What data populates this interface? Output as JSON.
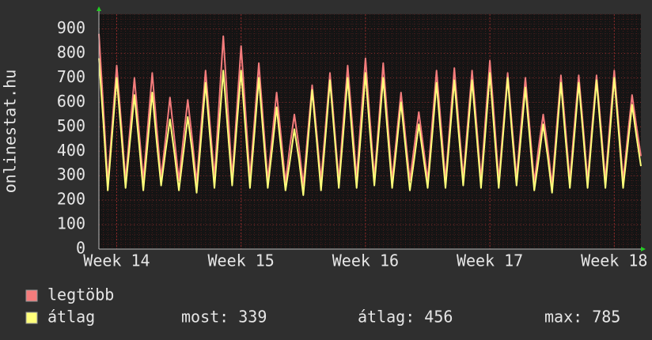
{
  "chart_data": {
    "type": "line",
    "y_label": "onlinestat.hu",
    "xlim": [
      -1,
      29.5
    ],
    "xticks": [
      {
        "value": 0,
        "label": "Week 14"
      },
      {
        "value": 7,
        "label": "Week 15"
      },
      {
        "value": 14,
        "label": "Week 16"
      },
      {
        "value": 21,
        "label": "Week 17"
      },
      {
        "value": 28,
        "label": "Week 18"
      }
    ],
    "ylim": [
      0,
      960
    ],
    "yticks": [
      0,
      100,
      200,
      300,
      400,
      500,
      600,
      700,
      800,
      900
    ],
    "grid": true,
    "x": [
      -1,
      -0.75,
      -0.5,
      -0.25,
      0,
      0.25,
      0.5,
      0.75,
      1,
      1.25,
      1.5,
      1.75,
      2,
      2.25,
      2.5,
      2.75,
      3,
      3.25,
      3.5,
      3.75,
      4,
      4.25,
      4.5,
      4.75,
      5,
      5.25,
      5.5,
      5.75,
      6,
      6.25,
      6.5,
      6.75,
      7,
      7.25,
      7.5,
      7.75,
      8,
      8.25,
      8.5,
      8.75,
      9,
      9.25,
      9.5,
      9.75,
      10,
      10.25,
      10.5,
      10.75,
      11,
      11.25,
      11.5,
      11.75,
      12,
      12.25,
      12.5,
      12.75,
      13,
      13.25,
      13.5,
      13.75,
      14,
      14.25,
      14.5,
      14.75,
      15,
      15.25,
      15.5,
      15.75,
      16,
      16.25,
      16.5,
      16.75,
      17,
      17.25,
      17.5,
      17.75,
      18,
      18.25,
      18.5,
      18.75,
      19,
      19.25,
      19.5,
      19.75,
      20,
      20.25,
      20.5,
      20.75,
      21,
      21.25,
      21.5,
      21.75,
      22,
      22.25,
      22.5,
      22.75,
      23,
      23.25,
      23.5,
      23.75,
      24,
      24.25,
      24.5,
      24.75,
      25,
      25.25,
      25.5,
      25.75,
      26,
      26.25,
      26.5,
      26.75,
      27,
      27.25,
      27.5,
      27.75,
      28,
      28.25,
      28.5,
      28.75,
      29,
      29.25,
      29.5
    ],
    "series": [
      {
        "name": "legtöbb",
        "color": "#f47c7c",
        "values": [
          880,
          580,
          270,
          510,
          750,
          520,
          280,
          490,
          700,
          490,
          280,
          500,
          720,
          500,
          290,
          450,
          620,
          450,
          280,
          450,
          610,
          450,
          270,
          500,
          730,
          510,
          290,
          580,
          870,
          580,
          290,
          560,
          830,
          560,
          290,
          520,
          760,
          520,
          280,
          460,
          640,
          460,
          270,
          420,
          550,
          420,
          260,
          470,
          670,
          480,
          280,
          500,
          720,
          500,
          280,
          520,
          750,
          520,
          290,
          540,
          780,
          530,
          290,
          520,
          760,
          520,
          280,
          460,
          640,
          460,
          280,
          420,
          560,
          420,
          280,
          510,
          730,
          510,
          280,
          510,
          740,
          510,
          290,
          510,
          730,
          510,
          280,
          530,
          770,
          530,
          280,
          500,
          720,
          500,
          290,
          500,
          700,
          490,
          270,
          420,
          550,
          420,
          260,
          490,
          710,
          500,
          280,
          500,
          710,
          500,
          280,
          500,
          710,
          500,
          280,
          510,
          730,
          510,
          280,
          460,
          630,
          500,
          380
        ]
      },
      {
        "name": "átlag",
        "color": "#ffff7a",
        "values": [
          780,
          520,
          240,
          470,
          700,
          480,
          250,
          440,
          630,
          440,
          240,
          440,
          640,
          440,
          260,
          400,
          530,
          390,
          240,
          390,
          540,
          400,
          230,
          450,
          680,
          460,
          250,
          490,
          730,
          490,
          260,
          500,
          730,
          490,
          250,
          470,
          700,
          470,
          250,
          410,
          580,
          410,
          240,
          360,
          490,
          370,
          220,
          430,
          650,
          450,
          240,
          460,
          690,
          470,
          250,
          470,
          700,
          470,
          250,
          480,
          720,
          480,
          260,
          480,
          700,
          470,
          250,
          420,
          600,
          420,
          240,
          370,
          510,
          380,
          250,
          460,
          680,
          460,
          250,
          470,
          690,
          470,
          260,
          470,
          690,
          470,
          250,
          480,
          720,
          480,
          250,
          470,
          700,
          470,
          260,
          460,
          660,
          450,
          240,
          370,
          510,
          380,
          230,
          450,
          680,
          460,
          250,
          460,
          680,
          470,
          250,
          470,
          690,
          470,
          250,
          470,
          700,
          480,
          250,
          420,
          590,
          460,
          339
        ]
      }
    ],
    "stats": [
      "most: 339",
      "átlag: 456",
      "max: 785"
    ]
  }
}
